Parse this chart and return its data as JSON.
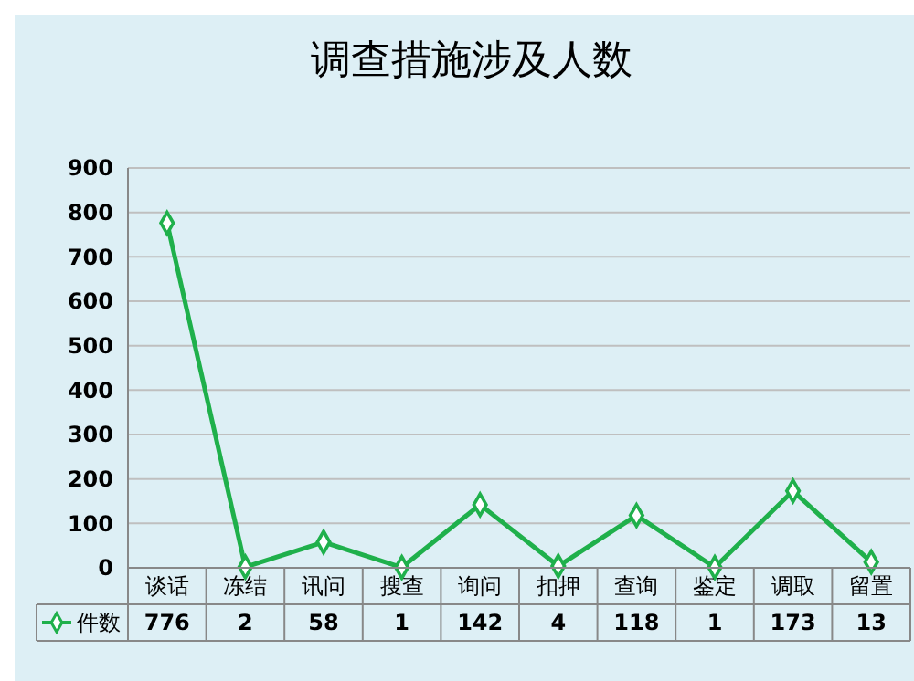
{
  "chart_data": {
    "type": "line",
    "title": "调查措施涉及人数",
    "categories": [
      "谈话",
      "冻结",
      "讯问",
      "搜查",
      "询问",
      "扣押",
      "查询",
      "鉴定",
      "调取",
      "留置"
    ],
    "series": [
      {
        "name": "件数",
        "color": "#1fb04b",
        "values": [
          776,
          2,
          58,
          1,
          142,
          4,
          118,
          1,
          173,
          13
        ]
      }
    ],
    "ylim": [
      0,
      900
    ],
    "yticks": [
      0,
      100,
      200,
      300,
      400,
      500,
      600,
      700,
      800,
      900
    ],
    "grid": "y",
    "marker": "diamond",
    "line_style": "solid",
    "legend": "bottom",
    "data_labels": true
  }
}
